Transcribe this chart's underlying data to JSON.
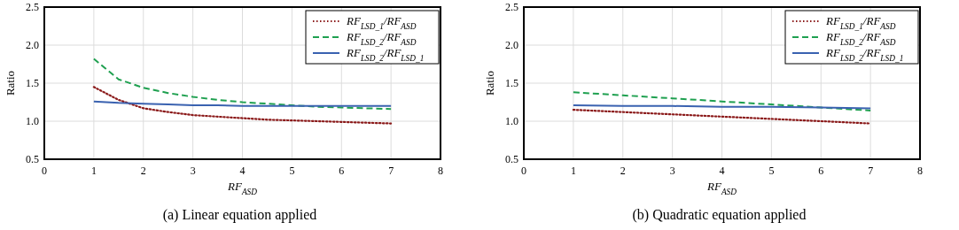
{
  "chart_data": [
    {
      "type": "line",
      "title": "(a) Linear equation applied",
      "xlabel": "RF$_{ASD}$",
      "ylabel": "Ratio",
      "xlim": [
        0,
        8
      ],
      "xticks": [
        0,
        1,
        2,
        3,
        4,
        5,
        6,
        7,
        8
      ],
      "ylim": [
        0.5,
        2.5
      ],
      "yticks": [
        {
          "value": 0.5,
          "label": "0.5"
        },
        {
          "value": 1,
          "label": "1.0"
        },
        {
          "value": 1.5,
          "label": "1.5"
        },
        {
          "value": 2,
          "label": "2.0"
        },
        {
          "value": 2.5,
          "label": "2.5"
        }
      ],
      "grid": true,
      "legend": "top right",
      "marker": "none",
      "series": [
        {
          "name": "RF$_{LSD_1}$/RF$_{ASD}$",
          "color": "#8b1a1a",
          "line_style": "dotted",
          "x": [
            1,
            1.5,
            2,
            2.5,
            3,
            3.5,
            4,
            4.5,
            5,
            5.5,
            6,
            6.5,
            7
          ],
          "values": [
            1.45,
            1.28,
            1.17,
            1.12,
            1.08,
            1.06,
            1.04,
            1.02,
            1.01,
            1.0,
            0.99,
            0.98,
            0.97
          ]
        },
        {
          "name": "RF$_{LSD_2}$/RF$_{ASD}$",
          "color": "#1fa050",
          "line_style": "dashed",
          "x": [
            1,
            1.5,
            2,
            2.5,
            3,
            3.5,
            4,
            4.5,
            5,
            5.5,
            6,
            6.5,
            7
          ],
          "values": [
            1.82,
            1.55,
            1.44,
            1.37,
            1.32,
            1.28,
            1.25,
            1.23,
            1.21,
            1.19,
            1.18,
            1.17,
            1.16
          ]
        },
        {
          "name": "RF$_{LSD_2}$/RF$_{LSD_1}$",
          "color": "#3a62b0",
          "line_style": "solid",
          "x": [
            1,
            1.5,
            2,
            2.5,
            3,
            3.5,
            4,
            4.5,
            5,
            5.5,
            6,
            6.5,
            7
          ],
          "values": [
            1.26,
            1.24,
            1.23,
            1.22,
            1.21,
            1.21,
            1.2,
            1.2,
            1.2,
            1.2,
            1.2,
            1.2,
            1.2
          ]
        }
      ]
    },
    {
      "type": "line",
      "title": "(b) Quadratic equation applied",
      "xlabel": "RF$_{ASD}$",
      "ylabel": "Ratio",
      "xlim": [
        0,
        8
      ],
      "xticks": [
        0,
        1,
        2,
        3,
        4,
        5,
        6,
        7,
        8
      ],
      "ylim": [
        0.5,
        2.5
      ],
      "yticks": [
        {
          "value": 0.5,
          "label": "0.5"
        },
        {
          "value": 1,
          "label": "1.0"
        },
        {
          "value": 1.5,
          "label": "1.5"
        },
        {
          "value": 2,
          "label": "2.0"
        },
        {
          "value": 2.5,
          "label": "2.5"
        }
      ],
      "grid": true,
      "legend": "top right",
      "marker": "none",
      "series": [
        {
          "name": "RF$_{LSD_1}$/RF$_{ASD}$",
          "color": "#8b1a1a",
          "line_style": "dotted",
          "x": [
            1,
            2,
            3,
            4,
            5,
            6,
            7
          ],
          "values": [
            1.15,
            1.12,
            1.09,
            1.06,
            1.03,
            1.0,
            0.97
          ]
        },
        {
          "name": "RF$_{LSD_2}$/RF$_{ASD}$",
          "color": "#1fa050",
          "line_style": "dashed",
          "x": [
            1,
            2,
            3,
            4,
            5,
            6,
            7
          ],
          "values": [
            1.38,
            1.34,
            1.3,
            1.26,
            1.22,
            1.18,
            1.14
          ]
        },
        {
          "name": "RF$_{LSD_2}$/RF$_{LSD_1}$",
          "color": "#3a62b0",
          "line_style": "solid",
          "x": [
            1,
            2,
            3,
            4,
            5,
            6,
            7
          ],
          "values": [
            1.21,
            1.2,
            1.2,
            1.19,
            1.19,
            1.18,
            1.17
          ]
        }
      ]
    }
  ]
}
